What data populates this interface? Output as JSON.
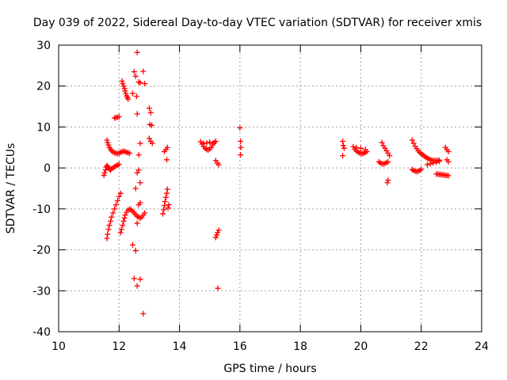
{
  "chart_data": {
    "type": "scatter",
    "title": "Day 039 of 2022, Sidereal Day-to-day VTEC variation (SDTVAR) for receiver xmis",
    "xlabel": "GPS time / hours",
    "ylabel": "SDTVAR / TECUs",
    "xlim": [
      10,
      24
    ],
    "ylim": [
      -40,
      30
    ],
    "xticks": [
      10,
      12,
      14,
      16,
      18,
      20,
      22,
      24
    ],
    "yticks": [
      30,
      20,
      10,
      0,
      -10,
      -20,
      -30,
      -40
    ],
    "grid": true,
    "marker": "+",
    "color": "#ff0000",
    "series": [
      {
        "name": "SDTVAR",
        "points": [
          [
            11.5,
            -1.8
          ],
          [
            11.52,
            -1.2
          ],
          [
            11.55,
            -0.5
          ],
          [
            11.58,
            0.2
          ],
          [
            11.6,
            0.6
          ],
          [
            11.63,
            0.3
          ],
          [
            11.65,
            0.0
          ],
          [
            11.68,
            -0.3
          ],
          [
            11.72,
            -0.5
          ],
          [
            11.75,
            -0.2
          ],
          [
            11.8,
            0.0
          ],
          [
            11.85,
            0.3
          ],
          [
            11.9,
            0.5
          ],
          [
            11.95,
            0.7
          ],
          [
            12.0,
            0.9
          ],
          [
            11.6,
            6.8
          ],
          [
            11.62,
            6.2
          ],
          [
            11.65,
            5.6
          ],
          [
            11.68,
            5.0
          ],
          [
            11.72,
            4.6
          ],
          [
            11.75,
            4.2
          ],
          [
            11.8,
            3.9
          ],
          [
            11.85,
            3.7
          ],
          [
            11.9,
            3.6
          ],
          [
            11.95,
            3.5
          ],
          [
            12.0,
            3.6
          ],
          [
            12.05,
            3.8
          ],
          [
            12.1,
            4.0
          ],
          [
            12.15,
            4.1
          ],
          [
            12.2,
            4.0
          ],
          [
            12.25,
            3.8
          ],
          [
            12.3,
            3.7
          ],
          [
            12.35,
            3.6
          ],
          [
            11.85,
            12.2
          ],
          [
            11.9,
            12.3
          ],
          [
            11.95,
            12.4
          ],
          [
            12.0,
            12.5
          ],
          [
            12.1,
            21.2
          ],
          [
            12.12,
            20.6
          ],
          [
            12.15,
            20.0
          ],
          [
            12.18,
            19.4
          ],
          [
            12.2,
            18.8
          ],
          [
            12.22,
            18.2
          ],
          [
            12.25,
            17.6
          ],
          [
            12.28,
            17.2
          ],
          [
            12.3,
            16.8
          ],
          [
            12.45,
            18.2
          ],
          [
            12.5,
            23.5
          ],
          [
            12.55,
            22.4
          ],
          [
            12.58,
            17.5
          ],
          [
            12.6,
            28.2
          ],
          [
            12.65,
            21.0
          ],
          [
            12.7,
            20.8
          ],
          [
            12.8,
            23.6
          ],
          [
            12.85,
            20.6
          ],
          [
            11.6,
            -17.2
          ],
          [
            11.62,
            -16.2
          ],
          [
            11.65,
            -15.0
          ],
          [
            11.68,
            -14.0
          ],
          [
            11.72,
            -13.0
          ],
          [
            11.75,
            -12.0
          ],
          [
            11.8,
            -11.0
          ],
          [
            11.85,
            -10.0
          ],
          [
            11.9,
            -9.0
          ],
          [
            11.95,
            -8.0
          ],
          [
            12.0,
            -7.0
          ],
          [
            12.05,
            -6.2
          ],
          [
            12.05,
            -15.8
          ],
          [
            12.08,
            -15.0
          ],
          [
            12.12,
            -14.0
          ],
          [
            12.15,
            -13.0
          ],
          [
            12.18,
            -12.2
          ],
          [
            12.2,
            -11.5
          ],
          [
            12.25,
            -10.8
          ],
          [
            12.3,
            -10.3
          ],
          [
            12.35,
            -10.0
          ],
          [
            12.4,
            -10.2
          ],
          [
            12.45,
            -10.6
          ],
          [
            12.5,
            -11.0
          ],
          [
            12.55,
            -11.4
          ],
          [
            12.6,
            -11.8
          ],
          [
            12.65,
            -12.0
          ],
          [
            12.7,
            -12.3
          ],
          [
            12.75,
            -12.0
          ],
          [
            12.8,
            -11.5
          ],
          [
            12.85,
            -11.0
          ],
          [
            12.6,
            -13.5
          ],
          [
            12.65,
            -9.0
          ],
          [
            12.7,
            -8.5
          ],
          [
            12.55,
            -5.0
          ],
          [
            12.7,
            -3.6
          ],
          [
            12.6,
            -1.2
          ],
          [
            12.65,
            -0.5
          ],
          [
            12.6,
            13.2
          ],
          [
            12.65,
            3.2
          ],
          [
            12.7,
            6.0
          ],
          [
            12.45,
            -18.8
          ],
          [
            12.55,
            -20.2
          ],
          [
            12.5,
            -27.0
          ],
          [
            12.6,
            -28.8
          ],
          [
            12.7,
            -27.2
          ],
          [
            12.8,
            -35.6
          ],
          [
            13.0,
            14.6
          ],
          [
            13.05,
            13.5
          ],
          [
            13.02,
            10.6
          ],
          [
            13.08,
            10.4
          ],
          [
            13.0,
            7.2
          ],
          [
            13.05,
            6.5
          ],
          [
            13.1,
            6.0
          ],
          [
            13.5,
            4.0
          ],
          [
            13.55,
            4.5
          ],
          [
            13.6,
            5.0
          ],
          [
            13.58,
            2.0
          ],
          [
            13.45,
            -11.2
          ],
          [
            13.48,
            -10.2
          ],
          [
            13.5,
            -9.2
          ],
          [
            13.52,
            -8.2
          ],
          [
            13.55,
            -7.2
          ],
          [
            13.58,
            -6.2
          ],
          [
            13.6,
            -5.2
          ],
          [
            13.62,
            -9.8
          ],
          [
            13.65,
            -9.0
          ],
          [
            14.7,
            6.4
          ],
          [
            14.75,
            5.8
          ],
          [
            14.8,
            5.2
          ],
          [
            14.85,
            4.8
          ],
          [
            14.9,
            4.5
          ],
          [
            14.95,
            4.4
          ],
          [
            15.0,
            4.6
          ],
          [
            15.05,
            5.0
          ],
          [
            15.1,
            5.6
          ],
          [
            15.15,
            6.2
          ],
          [
            15.2,
            6.5
          ],
          [
            14.8,
            6.0
          ],
          [
            14.9,
            6.1
          ],
          [
            15.0,
            6.3
          ],
          [
            15.1,
            6.0
          ],
          [
            15.2,
            1.8
          ],
          [
            15.25,
            1.2
          ],
          [
            15.3,
            0.8
          ],
          [
            15.2,
            -17.0
          ],
          [
            15.23,
            -16.4
          ],
          [
            15.26,
            -15.8
          ],
          [
            15.3,
            -15.2
          ],
          [
            15.27,
            -29.4
          ],
          [
            16.0,
            9.8
          ],
          [
            16.02,
            6.5
          ],
          [
            16.03,
            5.0
          ],
          [
            16.02,
            3.2
          ],
          [
            19.4,
            6.5
          ],
          [
            19.42,
            5.5
          ],
          [
            19.45,
            4.8
          ],
          [
            19.4,
            3.0
          ],
          [
            19.75,
            5.2
          ],
          [
            19.8,
            4.6
          ],
          [
            19.85,
            4.2
          ],
          [
            19.9,
            3.9
          ],
          [
            19.95,
            3.7
          ],
          [
            20.0,
            3.6
          ],
          [
            20.05,
            3.5
          ],
          [
            20.1,
            3.6
          ],
          [
            20.15,
            3.8
          ],
          [
            20.2,
            4.0
          ],
          [
            19.85,
            5.0
          ],
          [
            20.0,
            4.8
          ],
          [
            20.15,
            4.5
          ],
          [
            20.6,
            1.5
          ],
          [
            20.65,
            1.2
          ],
          [
            20.7,
            1.0
          ],
          [
            20.75,
            1.0
          ],
          [
            20.8,
            1.1
          ],
          [
            20.85,
            1.3
          ],
          [
            20.9,
            1.5
          ],
          [
            20.7,
            6.2
          ],
          [
            20.75,
            5.4
          ],
          [
            20.8,
            4.8
          ],
          [
            20.85,
            4.2
          ],
          [
            20.9,
            3.6
          ],
          [
            20.95,
            3.0
          ],
          [
            20.9,
            -3.0
          ],
          [
            20.88,
            -3.6
          ],
          [
            21.7,
            6.8
          ],
          [
            21.75,
            6.0
          ],
          [
            21.8,
            5.3
          ],
          [
            21.85,
            4.7
          ],
          [
            21.9,
            4.2
          ],
          [
            21.95,
            3.8
          ],
          [
            22.0,
            3.5
          ],
          [
            22.05,
            3.2
          ],
          [
            22.1,
            2.9
          ],
          [
            22.15,
            2.6
          ],
          [
            22.2,
            2.4
          ],
          [
            22.25,
            2.2
          ],
          [
            22.3,
            2.0
          ],
          [
            22.35,
            1.9
          ],
          [
            22.4,
            1.8
          ],
          [
            22.45,
            1.8
          ],
          [
            22.5,
            1.8
          ],
          [
            22.55,
            1.8
          ],
          [
            22.6,
            1.9
          ],
          [
            21.7,
            -0.4
          ],
          [
            21.75,
            -0.6
          ],
          [
            21.8,
            -0.8
          ],
          [
            21.85,
            -0.9
          ],
          [
            21.9,
            -0.8
          ],
          [
            21.95,
            -0.6
          ],
          [
            22.0,
            -0.3
          ],
          [
            22.2,
            0.8
          ],
          [
            22.3,
            1.0
          ],
          [
            22.4,
            1.2
          ],
          [
            22.5,
            1.4
          ],
          [
            22.6,
            1.6
          ],
          [
            22.5,
            -1.5
          ],
          [
            22.55,
            -1.5
          ],
          [
            22.6,
            -1.6
          ],
          [
            22.65,
            -1.6
          ],
          [
            22.7,
            -1.7
          ],
          [
            22.75,
            -1.7
          ],
          [
            22.8,
            -1.8
          ],
          [
            22.85,
            -1.8
          ],
          [
            22.9,
            -1.9
          ],
          [
            22.8,
            5.0
          ],
          [
            22.85,
            4.5
          ],
          [
            22.9,
            4.0
          ],
          [
            22.85,
            2.0
          ],
          [
            22.9,
            1.5
          ]
        ]
      }
    ]
  }
}
